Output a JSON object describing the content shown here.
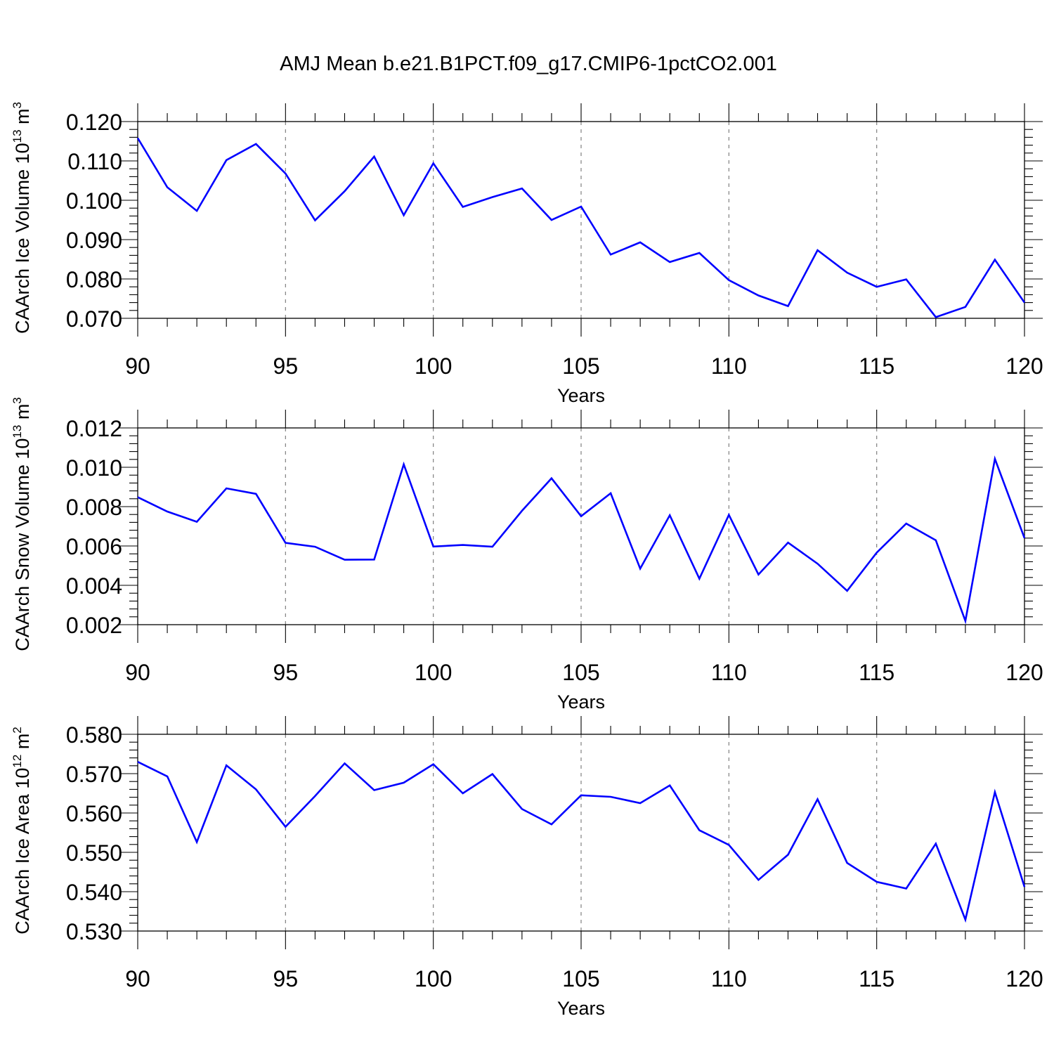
{
  "title": "AMJ Mean b.e21.B1PCT.f09_g17.CMIP6-1pctCO2.001",
  "colors": {
    "line": "#0000ff",
    "frame": "#000000",
    "grid": "#808080"
  },
  "chart_data": [
    {
      "type": "line",
      "ylabel": {
        "text": "CAArch Ice Volume 10",
        "exp": "13",
        "unit_tail": " m",
        "unit_exp": "3"
      },
      "xlabel": "Years",
      "xlim": [
        90,
        120
      ],
      "ylim": [
        0.07,
        0.12
      ],
      "xticks": [
        90,
        95,
        100,
        105,
        110,
        115,
        120
      ],
      "yticks": [
        "0.070",
        "0.080",
        "0.090",
        "0.100",
        "0.110",
        "0.120"
      ],
      "x": [
        90,
        91,
        92,
        93,
        94,
        95,
        96,
        97,
        98,
        99,
        100,
        101,
        102,
        103,
        104,
        105,
        106,
        107,
        108,
        109,
        110,
        111,
        112,
        113,
        114,
        115,
        116,
        117,
        118,
        119,
        120
      ],
      "series": [
        {
          "values": [
            0.1158,
            0.1033,
            0.0973,
            0.1102,
            0.1143,
            0.1068,
            0.0949,
            0.1023,
            0.1111,
            0.0962,
            0.1094,
            0.0983,
            0.1008,
            0.103,
            0.095,
            0.0984,
            0.0862,
            0.0893,
            0.0843,
            0.0866,
            0.0797,
            0.0758,
            0.0731,
            0.0873,
            0.0816,
            0.078,
            0.0799,
            0.0703,
            0.0729,
            0.0849,
            0.074
          ]
        }
      ],
      "grid": "dashed vertical at major x ticks"
    },
    {
      "type": "line",
      "ylabel": {
        "text": "CAArch Snow Volume 10",
        "exp": "13",
        "unit_tail": " m",
        "unit_exp": "3"
      },
      "xlabel": "Years",
      "xlim": [
        90,
        120
      ],
      "ylim": [
        0.002,
        0.012
      ],
      "xticks": [
        90,
        95,
        100,
        105,
        110,
        115,
        120
      ],
      "yticks": [
        "0.002",
        "0.004",
        "0.006",
        "0.008",
        "0.010",
        "0.012"
      ],
      "x": [
        90,
        91,
        92,
        93,
        94,
        95,
        96,
        97,
        98,
        99,
        100,
        101,
        102,
        103,
        104,
        105,
        106,
        107,
        108,
        109,
        110,
        111,
        112,
        113,
        114,
        115,
        116,
        117,
        118,
        119,
        120
      ],
      "series": [
        {
          "values": [
            0.00848,
            0.00775,
            0.00723,
            0.00893,
            0.00865,
            0.00616,
            0.00596,
            0.0053,
            0.00531,
            0.01015,
            0.00597,
            0.00605,
            0.00596,
            0.00779,
            0.00944,
            0.00751,
            0.00868,
            0.00485,
            0.00756,
            0.00434,
            0.00758,
            0.00455,
            0.00617,
            0.0051,
            0.00372,
            0.00566,
            0.00714,
            0.00629,
            0.00219,
            0.01043,
            0.0064
          ]
        }
      ],
      "grid": "dashed vertical at major x ticks"
    },
    {
      "type": "line",
      "ylabel": {
        "text": "CAArch Ice Area 10",
        "exp": "12",
        "unit_tail": " m",
        "unit_exp": "2"
      },
      "xlabel": "Years",
      "xlim": [
        90,
        120
      ],
      "ylim": [
        0.53,
        0.58
      ],
      "xticks": [
        90,
        95,
        100,
        105,
        110,
        115,
        120
      ],
      "yticks": [
        "0.530",
        "0.540",
        "0.550",
        "0.560",
        "0.570",
        "0.580"
      ],
      "x": [
        90,
        91,
        92,
        93,
        94,
        95,
        96,
        97,
        98,
        99,
        100,
        101,
        102,
        103,
        104,
        105,
        106,
        107,
        108,
        109,
        110,
        111,
        112,
        113,
        114,
        115,
        116,
        117,
        118,
        119,
        120
      ],
      "series": [
        {
          "values": [
            0.573,
            0.5693,
            0.5526,
            0.5721,
            0.566,
            0.5565,
            0.5643,
            0.5726,
            0.5658,
            0.5677,
            0.5724,
            0.565,
            0.5699,
            0.561,
            0.5571,
            0.5645,
            0.5641,
            0.5625,
            0.567,
            0.5556,
            0.5519,
            0.543,
            0.5494,
            0.5635,
            0.5473,
            0.5425,
            0.5408,
            0.5522,
            0.5329,
            0.5653,
            0.5412
          ]
        }
      ],
      "grid": "dashed vertical at major x ticks"
    }
  ]
}
